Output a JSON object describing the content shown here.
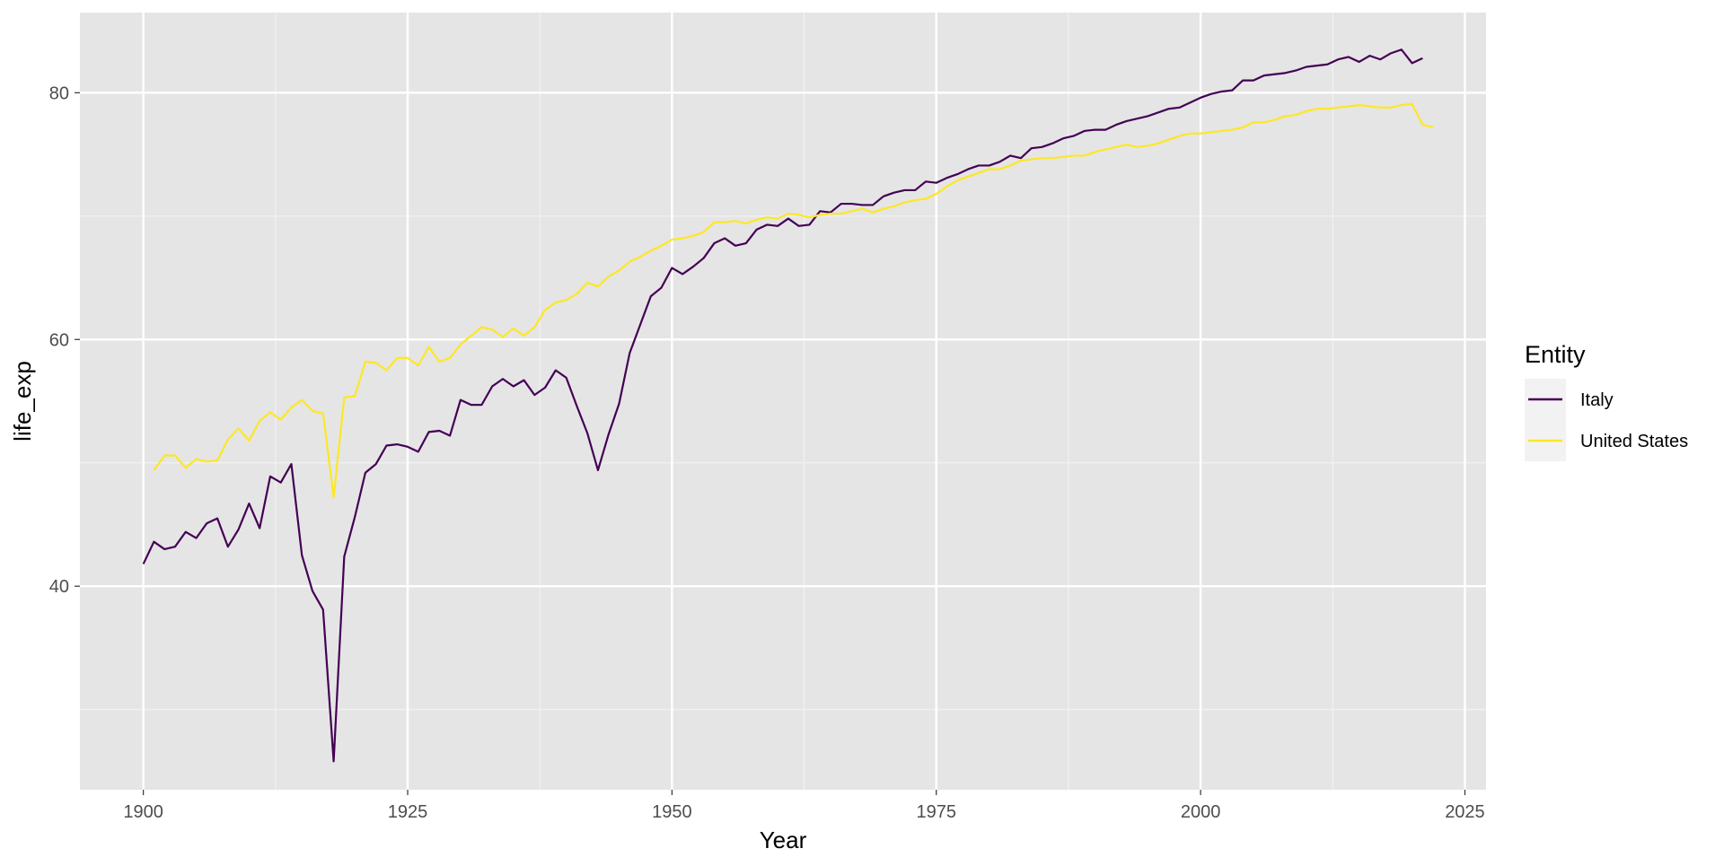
{
  "chart_data": {
    "type": "line",
    "title": "",
    "xlabel": "Year",
    "ylabel": "life_exp",
    "xlim": [
      1894,
      2027
    ],
    "ylim": [
      23.5,
      86.5
    ],
    "x_ticks": [
      1900,
      1925,
      1950,
      1975,
      2000,
      2025
    ],
    "x_tick_labels": [
      "1900",
      "1925",
      "1950",
      "1975",
      "2000",
      "2025"
    ],
    "y_ticks": [
      40,
      60,
      80
    ],
    "y_tick_labels": [
      "40",
      "60",
      "80"
    ],
    "grid": true,
    "legend": {
      "title": "Entity",
      "position": "right"
    },
    "series": [
      {
        "name": "Italy",
        "color": "#440154",
        "start_year": 1900,
        "values": [
          41.8,
          43.6,
          43.0,
          43.2,
          44.4,
          43.9,
          45.1,
          45.5,
          43.2,
          44.6,
          46.7,
          44.7,
          48.9,
          48.4,
          49.9,
          42.5,
          39.6,
          38.1,
          25.8,
          42.4,
          45.6,
          49.2,
          49.9,
          51.4,
          51.5,
          51.3,
          50.9,
          52.5,
          52.6,
          52.2,
          55.1,
          54.7,
          54.7,
          56.2,
          56.8,
          56.2,
          56.7,
          55.5,
          56.1,
          57.5,
          56.9,
          54.6,
          52.4,
          49.4,
          52.3,
          54.8,
          58.9,
          61.2,
          63.5,
          64.2,
          65.8,
          65.3,
          65.9,
          66.6,
          67.8,
          68.2,
          67.6,
          67.8,
          68.9,
          69.3,
          69.2,
          69.8,
          69.2,
          69.3,
          70.4,
          70.3,
          71.0,
          71.0,
          70.9,
          70.9,
          71.6,
          71.9,
          72.1,
          72.1,
          72.8,
          72.7,
          73.1,
          73.4,
          73.8,
          74.1,
          74.1,
          74.4,
          74.9,
          74.7,
          75.5,
          75.6,
          75.9,
          76.3,
          76.5,
          76.9,
          77.0,
          77.0,
          77.4,
          77.7,
          77.9,
          78.1,
          78.4,
          78.7,
          78.8,
          79.2,
          79.6,
          79.9,
          80.1,
          80.2,
          81.0,
          81.0,
          81.4,
          81.5,
          81.6,
          81.8,
          82.1,
          82.2,
          82.3,
          82.7,
          82.9,
          82.5,
          83.0,
          82.7,
          83.2,
          83.5,
          82.4,
          82.8
        ]
      },
      {
        "name": "United States",
        "color": "#fde725",
        "start_year": 1901,
        "values": [
          49.4,
          50.6,
          50.6,
          49.6,
          50.3,
          50.1,
          50.2,
          51.9,
          52.8,
          51.8,
          53.4,
          54.1,
          53.5,
          54.5,
          55.1,
          54.2,
          54.0,
          47.2,
          55.3,
          55.4,
          58.2,
          58.1,
          57.5,
          58.5,
          58.5,
          57.9,
          59.4,
          58.2,
          58.5,
          59.6,
          60.3,
          61.0,
          60.8,
          60.2,
          60.9,
          60.3,
          61.0,
          62.4,
          63.0,
          63.2,
          63.7,
          64.6,
          64.3,
          65.1,
          65.6,
          66.3,
          66.7,
          67.2,
          67.6,
          68.1,
          68.2,
          68.4,
          68.7,
          69.5,
          69.5,
          69.6,
          69.4,
          69.7,
          69.9,
          69.8,
          70.2,
          70.1,
          69.9,
          70.1,
          70.2,
          70.2,
          70.4,
          70.6,
          70.3,
          70.6,
          70.8,
          71.1,
          71.3,
          71.4,
          71.8,
          72.4,
          72.9,
          73.2,
          73.5,
          73.8,
          73.8,
          74.1,
          74.5,
          74.6,
          74.7,
          74.7,
          74.8,
          74.9,
          74.9,
          75.2,
          75.4,
          75.6,
          75.8,
          75.6,
          75.7,
          75.9,
          76.2,
          76.5,
          76.7,
          76.7,
          76.8,
          76.9,
          77.0,
          77.2,
          77.6,
          77.6,
          77.8,
          78.1,
          78.2,
          78.5,
          78.7,
          78.7,
          78.8,
          78.9,
          79.0,
          78.9,
          78.8,
          78.8,
          79.0,
          79.1,
          77.4,
          77.2
        ]
      }
    ]
  }
}
